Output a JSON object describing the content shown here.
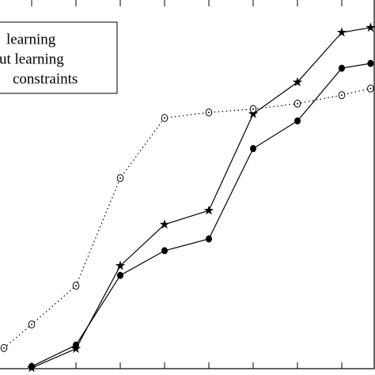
{
  "chart_data": {
    "type": "line",
    "x": [
      0.375,
      1,
      2,
      3,
      4,
      5,
      6,
      7,
      8,
      8.65
    ],
    "series": [
      {
        "name": "learning",
        "color": "#000000",
        "marker": "star",
        "dash": "solid",
        "values": [
          null,
          0.2,
          5.4,
          27.9,
          39.1,
          42.9,
          69.1,
          77.7,
          91.2,
          92.5
        ]
      },
      {
        "name": "ut learning",
        "color": "#000000",
        "marker": "dot",
        "dash": "solid",
        "values": [
          null,
          0.6,
          6.4,
          25.3,
          32.0,
          35.2,
          59.7,
          67.2,
          81.5,
          82.8
        ]
      },
      {
        "name": "constraints",
        "color": "#000000",
        "marker": "ring",
        "dash": "dotted",
        "values": [
          5.6,
          12.0,
          22.5,
          51.7,
          68.0,
          69.5,
          70.4,
          71.9,
          74.2,
          76.0
        ]
      }
    ],
    "xlim": [
      0.2857,
      8.75
    ],
    "xticks": [
      1,
      2,
      3,
      4,
      5,
      6,
      7,
      8
    ],
    "ylim": [
      0,
      100
    ]
  }
}
